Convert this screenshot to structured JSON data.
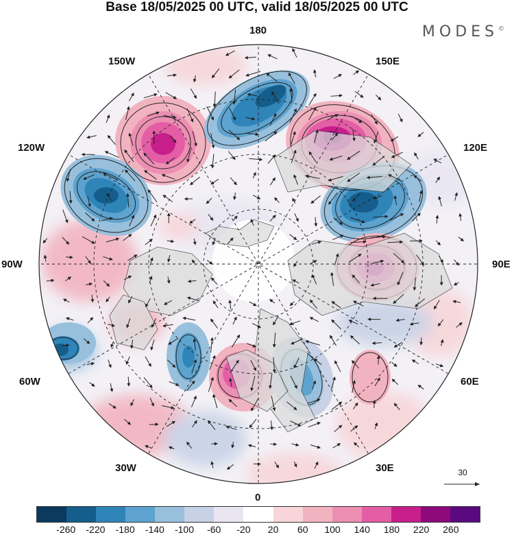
{
  "title": "Base 18/05/2025 00 UTC, valid 18/05/2025 00 UTC",
  "brand": "MODES",
  "brand_mark": "©",
  "longitude_labels": {
    "n180": "180",
    "w150": "150W",
    "e150": "150E",
    "w120": "120W",
    "e120": "120E",
    "w90": "90W",
    "e90": "90E",
    "w60": "60W",
    "e60": "60E",
    "w30": "30W",
    "e30": "30E",
    "s0": "0"
  },
  "vector_scale": "30",
  "colorbar": {
    "colors": [
      "#0b3a5e",
      "#155e8c",
      "#2f84b8",
      "#5ea3cf",
      "#98c0dd",
      "#c7d2e6",
      "#e9e6f2",
      "#ffffff",
      "#f7d5d9",
      "#f2b3c0",
      "#ec8fb3",
      "#e45ea5",
      "#c81e8c",
      "#8e0a7b",
      "#5a0a7e"
    ],
    "ticks": [
      "-260",
      "-220",
      "-180",
      "-140",
      "-100",
      "-60",
      "-20",
      "20",
      "60",
      "100",
      "140",
      "180",
      "220",
      "260"
    ]
  },
  "anomaly_centers": [
    {
      "sign": "+",
      "value": 240
    },
    {
      "sign": "-",
      "value": -230
    },
    {
      "sign": "+",
      "value": 250
    },
    {
      "sign": "-",
      "value": -240
    },
    {
      "sign": "-",
      "value": -220
    },
    {
      "sign": "+",
      "value": 200
    },
    {
      "sign": "-",
      "value": -160
    },
    {
      "sign": "-",
      "value": -140
    },
    {
      "sign": "+",
      "value": 170
    },
    {
      "sign": "-",
      "value": -120
    },
    {
      "sign": "+",
      "value": 80
    },
    {
      "sign": "+",
      "value": 60
    }
  ]
}
